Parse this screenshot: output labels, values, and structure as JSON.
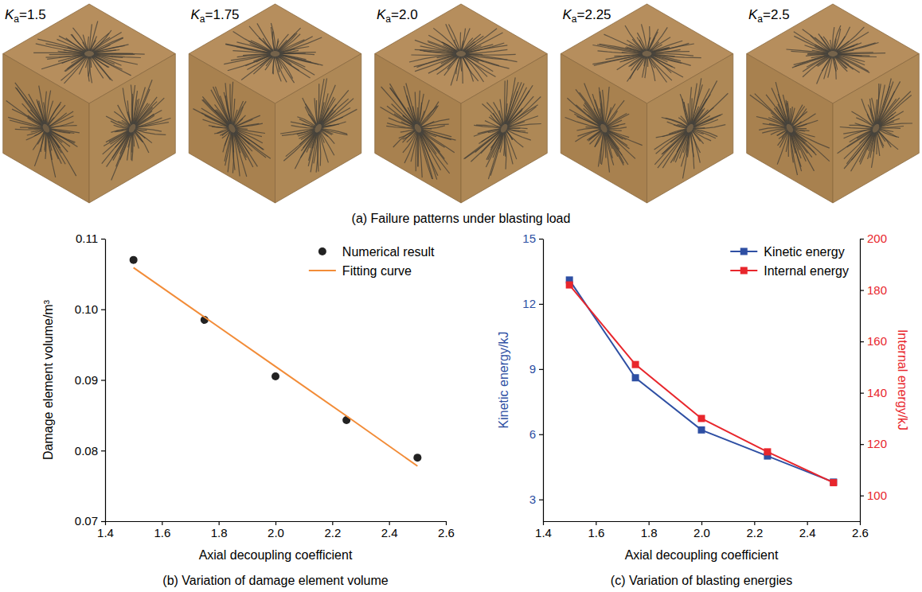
{
  "chart_data": [
    {
      "type": "image",
      "title": "(a) Failure patterns under blasting load",
      "panels": [
        {
          "symbol": "K",
          "subscript": "a",
          "text": "=1.5"
        },
        {
          "symbol": "K",
          "subscript": "a",
          "text": "=1.75"
        },
        {
          "symbol": "K",
          "subscript": "a",
          "text": "=2.0"
        },
        {
          "symbol": "K",
          "subscript": "a",
          "text": "=2.25"
        },
        {
          "symbol": "K",
          "subscript": "a",
          "text": "=2.5"
        }
      ]
    },
    {
      "type": "line",
      "title": "(b) Variation of damage element volume",
      "x_label": "Axial decoupling coefficient",
      "y_label": "Damage element volume/m³",
      "x": [
        1.5,
        1.75,
        2.0,
        2.25,
        2.5
      ],
      "xlim": [
        1.4,
        2.6
      ],
      "xticks": [
        1.4,
        1.6,
        1.8,
        {
          "value": 2.0,
          "label": "2.0"
        },
        2.2,
        2.4,
        2.6
      ],
      "ylim": [
        0.07,
        0.11
      ],
      "yticks": [
        0.07,
        0.08,
        0.09,
        {
          "value": 0.1,
          "label": "0.10"
        },
        0.11
      ],
      "legend": "upper right",
      "series": [
        {
          "name": "Numerical result",
          "type": "scatter",
          "color": "#222222",
          "marker": "circle",
          "values": [
            0.107,
            0.0985,
            0.0905,
            0.0843,
            0.079
          ]
        },
        {
          "name": "Fitting curve",
          "type": "line",
          "color": "#f28c38",
          "line_style": "solid",
          "values": [
            0.1059,
            0.0989,
            0.0919,
            0.0849,
            0.0778
          ]
        }
      ]
    },
    {
      "type": "line",
      "title": "(c) Variation of blasting energies",
      "x_label": "Axial decoupling coefficient",
      "y_label": "Kinetic energy/kJ",
      "y2_label": "Internal energy/kJ",
      "x": [
        1.5,
        1.75,
        2.0,
        2.25,
        2.5
      ],
      "xlim": [
        1.4,
        2.6
      ],
      "xticks": [
        1.4,
        1.6,
        1.8,
        {
          "value": 2.0,
          "label": "2.0"
        },
        2.2,
        2.4,
        2.6
      ],
      "ylim": [
        2,
        15
      ],
      "yticks": [
        3,
        6,
        9,
        12,
        15
      ],
      "y2lim": [
        90,
        200
      ],
      "y2ticks": [
        100,
        120,
        140,
        160,
        180,
        200
      ],
      "legend": "upper right",
      "series": [
        {
          "name": "Kinetic energy",
          "color": "#2e4fa3",
          "marker": "square",
          "line_style": "solid",
          "values": [
            13.1,
            8.6,
            6.2,
            5.0,
            3.8
          ]
        },
        {
          "name": "Internal energy",
          "color": "#e8262c",
          "marker": "square",
          "line_style": "solid",
          "axis": "y2",
          "values": [
            182,
            151,
            130,
            117,
            105
          ]
        }
      ]
    }
  ]
}
